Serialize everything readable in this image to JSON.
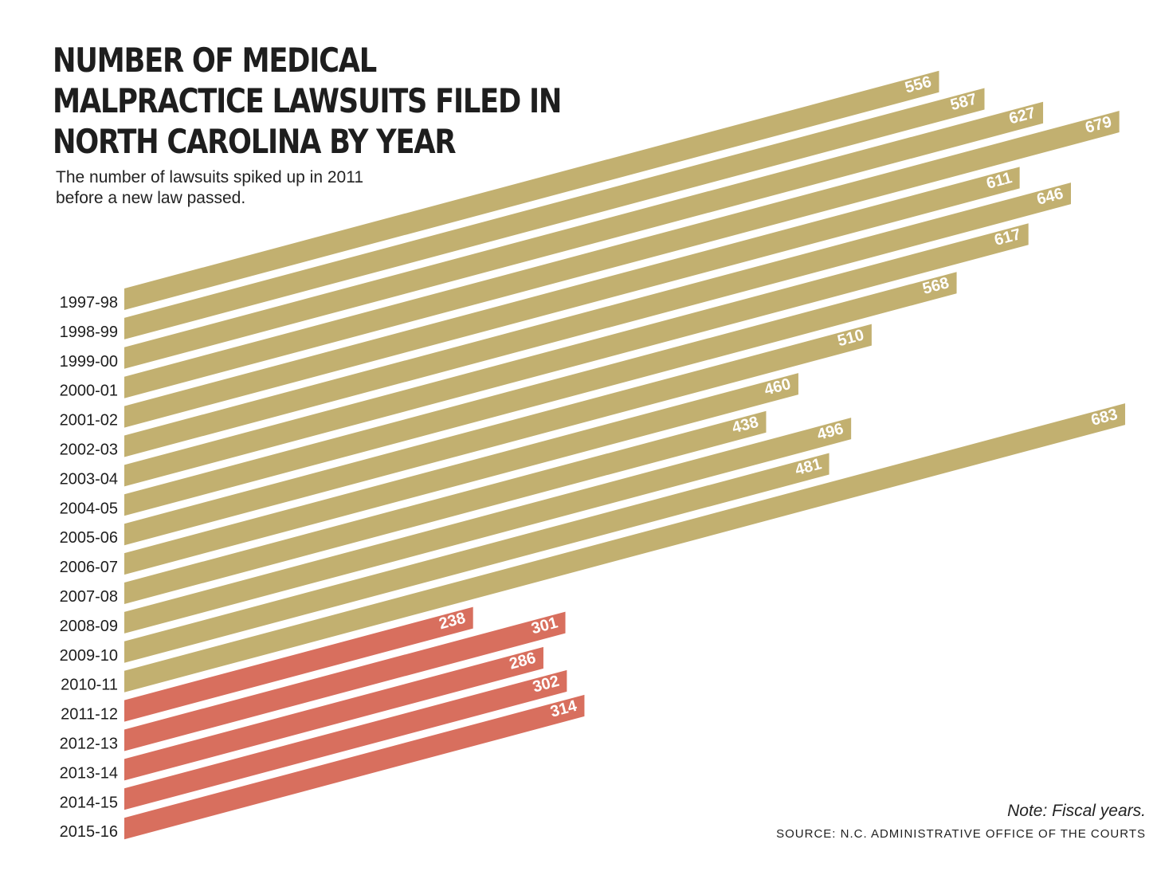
{
  "chart_data": {
    "type": "bar",
    "title_lines": [
      "NUMBER OF MEDICAL",
      "MALPRACTICE LAWSUITS FILED IN",
      "NORTH CAROLINA BY YEAR"
    ],
    "subtitle_lines": [
      "The number of lawsuits spiked up in 2011",
      "before a new law passed."
    ],
    "categories": [
      "1997-98",
      "1998-99",
      "1999-00",
      "2000-01",
      "2001-02",
      "2002-03",
      "2003-04",
      "2004-05",
      "2005-06",
      "2006-07",
      "2007-08",
      "2008-09",
      "2009-10",
      "2010-11",
      "2011-12",
      "2012-13",
      "2013-14",
      "2014-15",
      "2015-16"
    ],
    "values": [
      556,
      587,
      627,
      679,
      611,
      646,
      617,
      568,
      510,
      460,
      438,
      496,
      481,
      683,
      238,
      301,
      286,
      302,
      314
    ],
    "value_labels": [
      "556",
      "587",
      "627",
      "679",
      "611",
      "646",
      "617",
      "568",
      "510",
      "460",
      "438",
      "496",
      "481",
      "683",
      "238",
      "301",
      "286",
      "302",
      "314"
    ],
    "colors": {
      "before": "#c2b070",
      "after": "#d86f5e",
      "highlight_from_index": 14
    },
    "note": "Note: Fiscal years.",
    "source": "SOURCE: N.C. ADMINISTRATIVE OFFICE OF THE COURTS"
  }
}
